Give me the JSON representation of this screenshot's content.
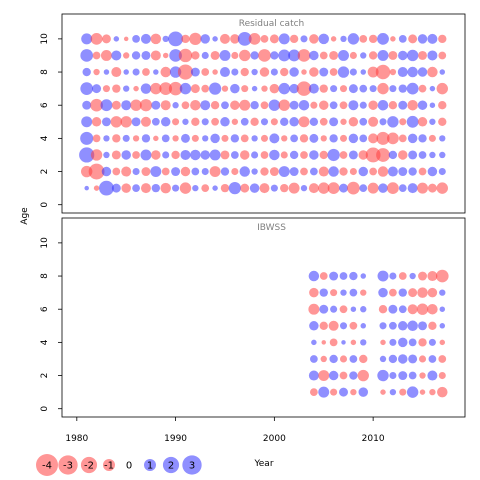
{
  "chart_data": {
    "type": "scatter",
    "xlabel": "Year",
    "ylabel": "Age",
    "x_ticks": [
      1980,
      1990,
      2000,
      2010
    ],
    "y_ticks": [
      0,
      2,
      4,
      6,
      8,
      10
    ],
    "colors": {
      "negative": "#FF4040",
      "positive": "#3333FF"
    },
    "legend": {
      "values": [
        -4,
        -3,
        -2,
        -1,
        0,
        1,
        2,
        3
      ],
      "labels": [
        "-4",
        "-3",
        "-2",
        "-1",
        "0",
        "1",
        "2",
        "3"
      ]
    },
    "panels": [
      {
        "title": "Residual catch",
        "xlim": [
          1978.5,
          2019.3
        ],
        "ylim": [
          -0.5,
          11.5
        ],
        "years": [
          1981,
          1982,
          1983,
          1984,
          1985,
          1986,
          1987,
          1988,
          1989,
          1990,
          1991,
          1992,
          1993,
          1994,
          1995,
          1996,
          1997,
          1998,
          1999,
          2000,
          2001,
          2002,
          2003,
          2004,
          2005,
          2006,
          2007,
          2008,
          2009,
          2010,
          2011,
          2012,
          2013,
          2014,
          2015,
          2016,
          2017
        ],
        "ages": [
          1,
          2,
          3,
          4,
          5,
          6,
          7,
          8,
          9,
          10
        ],
        "residuals": {
          "10": [
            1.2,
            -1.4,
            -0.8,
            0.3,
            -0.2,
            0.6,
            1.0,
            -1.1,
            0.4,
            2.2,
            -0.7,
            -1.5,
            0.9,
            0.3,
            -1.0,
            -0.9,
            1.9,
            -1.4,
            -0.6,
            -0.8,
            1.2,
            -0.7,
            0.5,
            -0.9,
            1.1,
            -0.3,
            0.4,
            1.3,
            -0.6,
            -0.7,
            1.4,
            -0.3,
            0.6,
            -0.8,
            0.9,
            1.0,
            -0.7
          ],
          "9": [
            1.6,
            -0.6,
            -1.2,
            1.0,
            -0.4,
            0.7,
            0.8,
            -1.0,
            -0.3,
            1.6,
            -1.8,
            -0.7,
            0.5,
            -0.8,
            1.2,
            -0.5,
            -1.3,
            0.7,
            -1.6,
            0.7,
            1.4,
            1.4,
            -1.6,
            0.9,
            -0.6,
            -0.8,
            1.2,
            -0.5,
            0.4,
            -0.7,
            1.2,
            -0.8,
            0.9,
            1.3,
            -0.8,
            1.0,
            -0.6
          ],
          "8": [
            0.7,
            -0.4,
            0.3,
            -1.0,
            0.3,
            0.5,
            -0.6,
            0.3,
            -1.1,
            1.3,
            -2.3,
            0.8,
            -0.6,
            -0.3,
            1.0,
            0.5,
            -0.7,
            0.4,
            -0.9,
            0.5,
            -0.7,
            0.9,
            -0.3,
            -0.9,
            0.8,
            -0.6,
            1.3,
            0.5,
            0.3,
            -1.2,
            -2.1,
            -0.4,
            1.0,
            1.1,
            0.9,
            -1.1,
            0.3
          ],
          "7": [
            1.6,
            0.8,
            -0.5,
            -0.7,
            0.4,
            -0.3,
            1.1,
            -1.3,
            -1.6,
            -1.8,
            1.3,
            -0.8,
            -0.6,
            1.5,
            -0.4,
            0.9,
            -0.5,
            0.3,
            -0.4,
            -0.9,
            1.3,
            0.9,
            -2.1,
            1.0,
            -0.7,
            0.5,
            -0.5,
            0.8,
            0.6,
            0.5,
            -1.3,
            0.5,
            0.7,
            1.4,
            -0.6,
            0.3,
            -1.3
          ],
          "6": [
            0.8,
            -1.6,
            1.4,
            -0.8,
            1.0,
            -1.3,
            -1.5,
            0.8,
            -1.0,
            0.4,
            -0.6,
            -1.1,
            1.0,
            -0.7,
            0.6,
            -0.9,
            -1.2,
            0.7,
            -0.6,
            1.3,
            -1.3,
            0.8,
            1.1,
            -0.5,
            -0.9,
            0.6,
            -0.6,
            1.0,
            0.5,
            -0.9,
            1.1,
            -0.7,
            0.8,
            -1.1,
            0.9,
            0.3,
            -0.7
          ],
          "5": [
            1.2,
            -0.9,
            0.8,
            -1.3,
            -1.3,
            0.8,
            -1.0,
            0.6,
            0.9,
            -0.5,
            0.4,
            -0.7,
            0.5,
            -0.6,
            0.9,
            -0.4,
            0.6,
            -0.7,
            0.5,
            -0.5,
            0.7,
            0.9,
            -1.2,
            0.7,
            -0.6,
            0.8,
            -0.4,
            -0.9,
            0.6,
            -1.0,
            0.5,
            1.3,
            -0.5,
            1.4,
            -0.9,
            0.4,
            -0.7
          ],
          "4": [
            1.7,
            -0.6,
            0.4,
            -0.7,
            0.5,
            -0.4,
            0.7,
            -0.3,
            0.6,
            -0.4,
            0.8,
            -0.5,
            0.4,
            0.9,
            -0.5,
            0.7,
            -0.6,
            0.4,
            -0.5,
            1.0,
            -0.4,
            0.6,
            -0.7,
            0.8,
            -0.4,
            0.7,
            -0.5,
            0.9,
            0.6,
            -1.0,
            -1.7,
            -1.4,
            -0.6,
            0.9,
            0.7,
            -0.5,
            0.4
          ],
          "3": [
            2.3,
            -1.3,
            0.4,
            -0.8,
            0.9,
            -0.6,
            1.2,
            -0.9,
            0.5,
            -0.7,
            1.0,
            1.1,
            0.9,
            1.2,
            -0.8,
            0.6,
            -0.9,
            0.5,
            -0.6,
            1.1,
            -0.5,
            0.7,
            -0.6,
            0.9,
            -0.7,
            1.5,
            -0.6,
            0.8,
            -0.9,
            -2.2,
            -1.9,
            0.7,
            -0.9,
            0.8,
            0.6,
            0.4,
            0.4
          ],
          "2": [
            -1.3,
            -2.5,
            0.9,
            -0.6,
            -1.0,
            0.5,
            -0.8,
            1.2,
            -0.6,
            0.8,
            -0.9,
            0.6,
            0.5,
            -1.2,
            0.7,
            -0.5,
            1.1,
            0.4,
            -0.7,
            -0.8,
            1.2,
            0.8,
            -0.6,
            0.6,
            -1.0,
            1.1,
            -0.7,
            -0.5,
            0.9,
            -0.6,
            -1.1,
            1.0,
            0.8,
            0.7,
            -0.6,
            0.9,
            0.5
          ],
          "1": [
            0.2,
            -0.3,
            2.2,
            0.8,
            -0.9,
            0.6,
            -1.0,
            0.7,
            -1.1,
            0.5,
            -1.3,
            0.4,
            -0.6,
            0.3,
            -0.7,
            1.5,
            -0.8,
            0.9,
            -1.0,
            0.5,
            -0.7,
            -1.2,
            0.4,
            -1.0,
            -1.3,
            -1.4,
            0.8,
            -1.6,
            0.6,
            -1.2,
            0.9,
            -1.4,
            0.6,
            1.0,
            -1.2,
            -0.8,
            -1.3
          ]
        }
      },
      {
        "title": "IBWSS",
        "xlim": [
          1978.5,
          2019.3
        ],
        "ylim": [
          -0.5,
          11.5
        ],
        "years": [
          2004,
          2005,
          2006,
          2007,
          2008,
          2009,
          2011,
          2012,
          2013,
          2014,
          2015,
          2016,
          2017
        ],
        "ages": [
          1,
          2,
          3,
          4,
          5,
          6,
          7,
          8
        ],
        "residuals": {
          "8": [
            1.1,
            -0.6,
            0.8,
            0.6,
            0.7,
            0.3,
            1.2,
            0.5,
            -0.6,
            0.4,
            -0.8,
            -1.0,
            -1.6
          ],
          "7": [
            -0.9,
            0.7,
            -0.5,
            0.4,
            0.6,
            -0.4,
            0.9,
            -0.6,
            0.7,
            -0.8,
            -1.1,
            -0.9,
            0.4
          ],
          "6": [
            -1.2,
            0.8,
            0.5,
            -0.6,
            0.3,
            0.4,
            -0.7,
            0.8,
            0.6,
            -1.0,
            -1.3,
            -1.1,
            0.3
          ],
          "5": [
            0.9,
            -0.7,
            -1.0,
            0.5,
            -0.6,
            0.3,
            0.5,
            0.6,
            0.9,
            1.1,
            0.8,
            -0.7,
            0.3
          ],
          "4": [
            0.3,
            -0.2,
            -0.6,
            0.2,
            -0.3,
            0.4,
            -0.3,
            0.5,
            0.9,
            0.6,
            -0.7,
            0.5,
            -0.3
          ],
          "3": [
            0.6,
            -0.4,
            0.7,
            -0.5,
            0.6,
            -0.7,
            0.4,
            0.7,
            0.9,
            0.8,
            -0.5,
            0.6,
            -0.6
          ],
          "2": [
            1.0,
            -1.2,
            0.9,
            -0.6,
            0.7,
            -1.3,
            1.3,
            0.5,
            0.8,
            0.6,
            -0.4,
            1.0,
            -0.5
          ],
          "1": [
            -0.6,
            1.2,
            -0.5,
            0.8,
            -0.4,
            0.9,
            -0.3,
            0.4,
            -0.5,
            1.3,
            -0.3,
            -0.4,
            -1.1
          ]
        }
      }
    ]
  }
}
